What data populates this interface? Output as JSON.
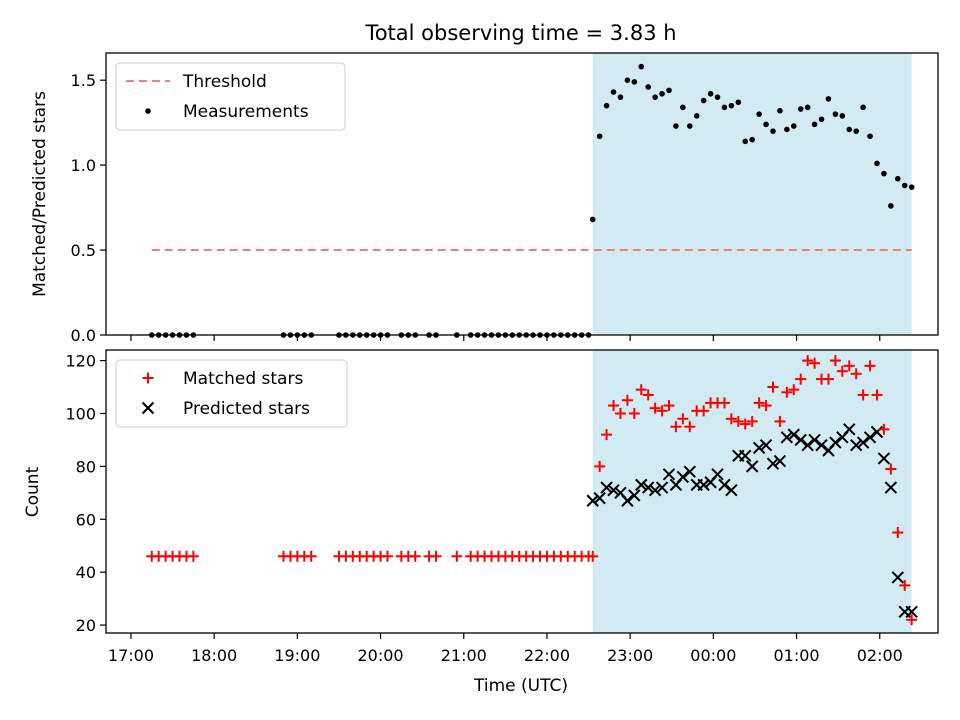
{
  "title": "Total observing time = 3.83 h",
  "colors": {
    "threshold": "#f08080",
    "measurements": "#000000",
    "matched": "#ff0000",
    "predicted": "#000000",
    "span_fill": "#add8e6"
  },
  "chart_data": [
    {
      "type": "scatter",
      "title": "Total observing time = 3.83 h",
      "xlabel": "",
      "ylabel": "Matched/Predicted stars",
      "ylim": [
        0,
        1.66
      ],
      "yticks": [
        "0.0",
        "0.5",
        "1.0",
        "1.5"
      ],
      "legend_position": "top-left",
      "highlight_span": {
        "start": "22:33",
        "end": "02:23"
      },
      "threshold": {
        "name": "Threshold",
        "value": 0.5,
        "x_start": "17:15",
        "x_end": "02:23"
      },
      "series": [
        {
          "name": "Measurements",
          "x": [
            "17:15",
            "17:20",
            "17:25",
            "17:30",
            "17:35",
            "17:40",
            "17:45",
            "18:50",
            "18:55",
            "19:00",
            "19:05",
            "19:10",
            "19:30",
            "19:35",
            "19:40",
            "19:45",
            "19:50",
            "19:55",
            "20:00",
            "20:05",
            "20:15",
            "20:20",
            "20:25",
            "20:35",
            "20:40",
            "20:55",
            "21:05",
            "21:10",
            "21:15",
            "21:20",
            "21:25",
            "21:30",
            "21:35",
            "21:40",
            "21:45",
            "21:50",
            "21:55",
            "22:00",
            "22:05",
            "22:10",
            "22:15",
            "22:20",
            "22:25",
            "22:30",
            "22:33",
            "22:38",
            "22:43",
            "22:48",
            "22:53",
            "22:58",
            "23:03",
            "23:08",
            "23:13",
            "23:18",
            "23:23",
            "23:28",
            "23:33",
            "23:38",
            "23:43",
            "23:48",
            "23:53",
            "23:58",
            "00:03",
            "00:08",
            "00:13",
            "00:18",
            "00:23",
            "00:28",
            "00:33",
            "00:38",
            "00:43",
            "00:48",
            "00:53",
            "00:58",
            "01:03",
            "01:08",
            "01:13",
            "01:18",
            "01:23",
            "01:28",
            "01:33",
            "01:38",
            "01:43",
            "01:48",
            "01:53",
            "01:58",
            "02:03",
            "02:08",
            "02:13",
            "02:18",
            "02:23"
          ],
          "y": [
            0,
            0,
            0,
            0,
            0,
            0,
            0,
            0,
            0,
            0,
            0,
            0,
            0,
            0,
            0,
            0,
            0,
            0,
            0,
            0,
            0,
            0,
            0,
            0,
            0,
            0,
            0,
            0,
            0,
            0,
            0,
            0,
            0,
            0,
            0,
            0,
            0,
            0,
            0,
            0,
            0,
            0,
            0,
            0,
            0.68,
            1.17,
            1.35,
            1.43,
            1.4,
            1.5,
            1.49,
            1.58,
            1.46,
            1.4,
            1.42,
            1.44,
            1.23,
            1.34,
            1.23,
            1.29,
            1.38,
            1.42,
            1.4,
            1.34,
            1.35,
            1.37,
            1.14,
            1.15,
            1.3,
            1.24,
            1.2,
            1.32,
            1.21,
            1.23,
            1.33,
            1.34,
            1.24,
            1.27,
            1.39,
            1.3,
            1.29,
            1.21,
            1.2,
            1.34,
            1.17,
            1.01,
            0.95,
            0.76,
            0.92,
            0.88,
            0.87
          ]
        }
      ]
    },
    {
      "type": "scatter",
      "title": "",
      "xlabel": "Time (UTC)",
      "ylabel": "Count",
      "ylim": [
        17,
        124
      ],
      "yticks": [
        "20",
        "40",
        "60",
        "80",
        "100",
        "120"
      ],
      "xticks": [
        "17:00",
        "18:00",
        "19:00",
        "20:00",
        "21:00",
        "22:00",
        "23:00",
        "00:00",
        "01:00",
        "02:00"
      ],
      "legend_position": "top-left",
      "highlight_span": {
        "start": "22:33",
        "end": "02:23"
      },
      "series": [
        {
          "name": "Matched stars",
          "marker": "+",
          "x": [
            "17:15",
            "17:20",
            "17:25",
            "17:30",
            "17:35",
            "17:40",
            "17:45",
            "18:50",
            "18:55",
            "19:00",
            "19:05",
            "19:10",
            "19:30",
            "19:35",
            "19:40",
            "19:45",
            "19:50",
            "19:55",
            "20:00",
            "20:05",
            "20:15",
            "20:20",
            "20:25",
            "20:35",
            "20:40",
            "20:55",
            "21:05",
            "21:10",
            "21:15",
            "21:20",
            "21:25",
            "21:30",
            "21:35",
            "21:40",
            "21:45",
            "21:50",
            "21:55",
            "22:00",
            "22:05",
            "22:10",
            "22:15",
            "22:20",
            "22:25",
            "22:30",
            "22:33",
            "22:38",
            "22:43",
            "22:48",
            "22:53",
            "22:58",
            "23:03",
            "23:08",
            "23:13",
            "23:18",
            "23:23",
            "23:28",
            "23:33",
            "23:38",
            "23:43",
            "23:48",
            "23:53",
            "23:58",
            "00:03",
            "00:08",
            "00:13",
            "00:18",
            "00:23",
            "00:28",
            "00:33",
            "00:38",
            "00:43",
            "00:48",
            "00:53",
            "00:58",
            "01:03",
            "01:08",
            "01:13",
            "01:18",
            "01:23",
            "01:28",
            "01:33",
            "01:38",
            "01:43",
            "01:48",
            "01:53",
            "01:58",
            "02:03",
            "02:08",
            "02:13",
            "02:18",
            "02:23"
          ],
          "y": [
            46,
            46,
            46,
            46,
            46,
            46,
            46,
            46,
            46,
            46,
            46,
            46,
            46,
            46,
            46,
            46,
            46,
            46,
            46,
            46,
            46,
            46,
            46,
            46,
            46,
            46,
            46,
            46,
            46,
            46,
            46,
            46,
            46,
            46,
            46,
            46,
            46,
            46,
            46,
            46,
            46,
            46,
            46,
            46,
            46,
            80,
            92,
            103,
            100,
            105,
            100,
            109,
            107,
            102,
            101,
            103,
            95,
            98,
            95,
            101,
            101,
            104,
            104,
            104,
            98,
            97,
            96,
            97,
            104,
            103,
            110,
            97,
            108,
            109,
            113,
            120,
            119,
            113,
            113,
            120,
            116,
            118,
            115,
            107,
            118,
            107,
            94,
            79,
            55,
            35,
            22
          ]
        },
        {
          "name": "Predicted stars",
          "marker": "x",
          "x": [
            "22:33",
            "22:38",
            "22:43",
            "22:48",
            "22:53",
            "22:58",
            "23:03",
            "23:08",
            "23:13",
            "23:18",
            "23:23",
            "23:28",
            "23:33",
            "23:38",
            "23:43",
            "23:48",
            "23:53",
            "23:58",
            "00:03",
            "00:08",
            "00:13",
            "00:18",
            "00:23",
            "00:28",
            "00:33",
            "00:38",
            "00:43",
            "00:48",
            "00:53",
            "00:58",
            "01:03",
            "01:08",
            "01:13",
            "01:18",
            "01:23",
            "01:28",
            "01:33",
            "01:38",
            "01:43",
            "01:48",
            "01:53",
            "01:58",
            "02:03",
            "02:08",
            "02:13",
            "02:18",
            "02:23"
          ],
          "y": [
            67,
            68,
            72,
            71,
            70,
            67,
            69,
            73,
            72,
            71,
            72,
            77,
            73,
            76,
            78,
            73,
            73,
            74,
            77,
            73,
            71,
            84,
            84,
            80,
            87,
            88,
            81,
            82,
            91,
            92,
            90,
            88,
            90,
            88,
            86,
            89,
            91,
            94,
            88,
            89,
            91,
            93,
            83,
            72,
            38,
            25,
            25
          ]
        }
      ]
    }
  ]
}
